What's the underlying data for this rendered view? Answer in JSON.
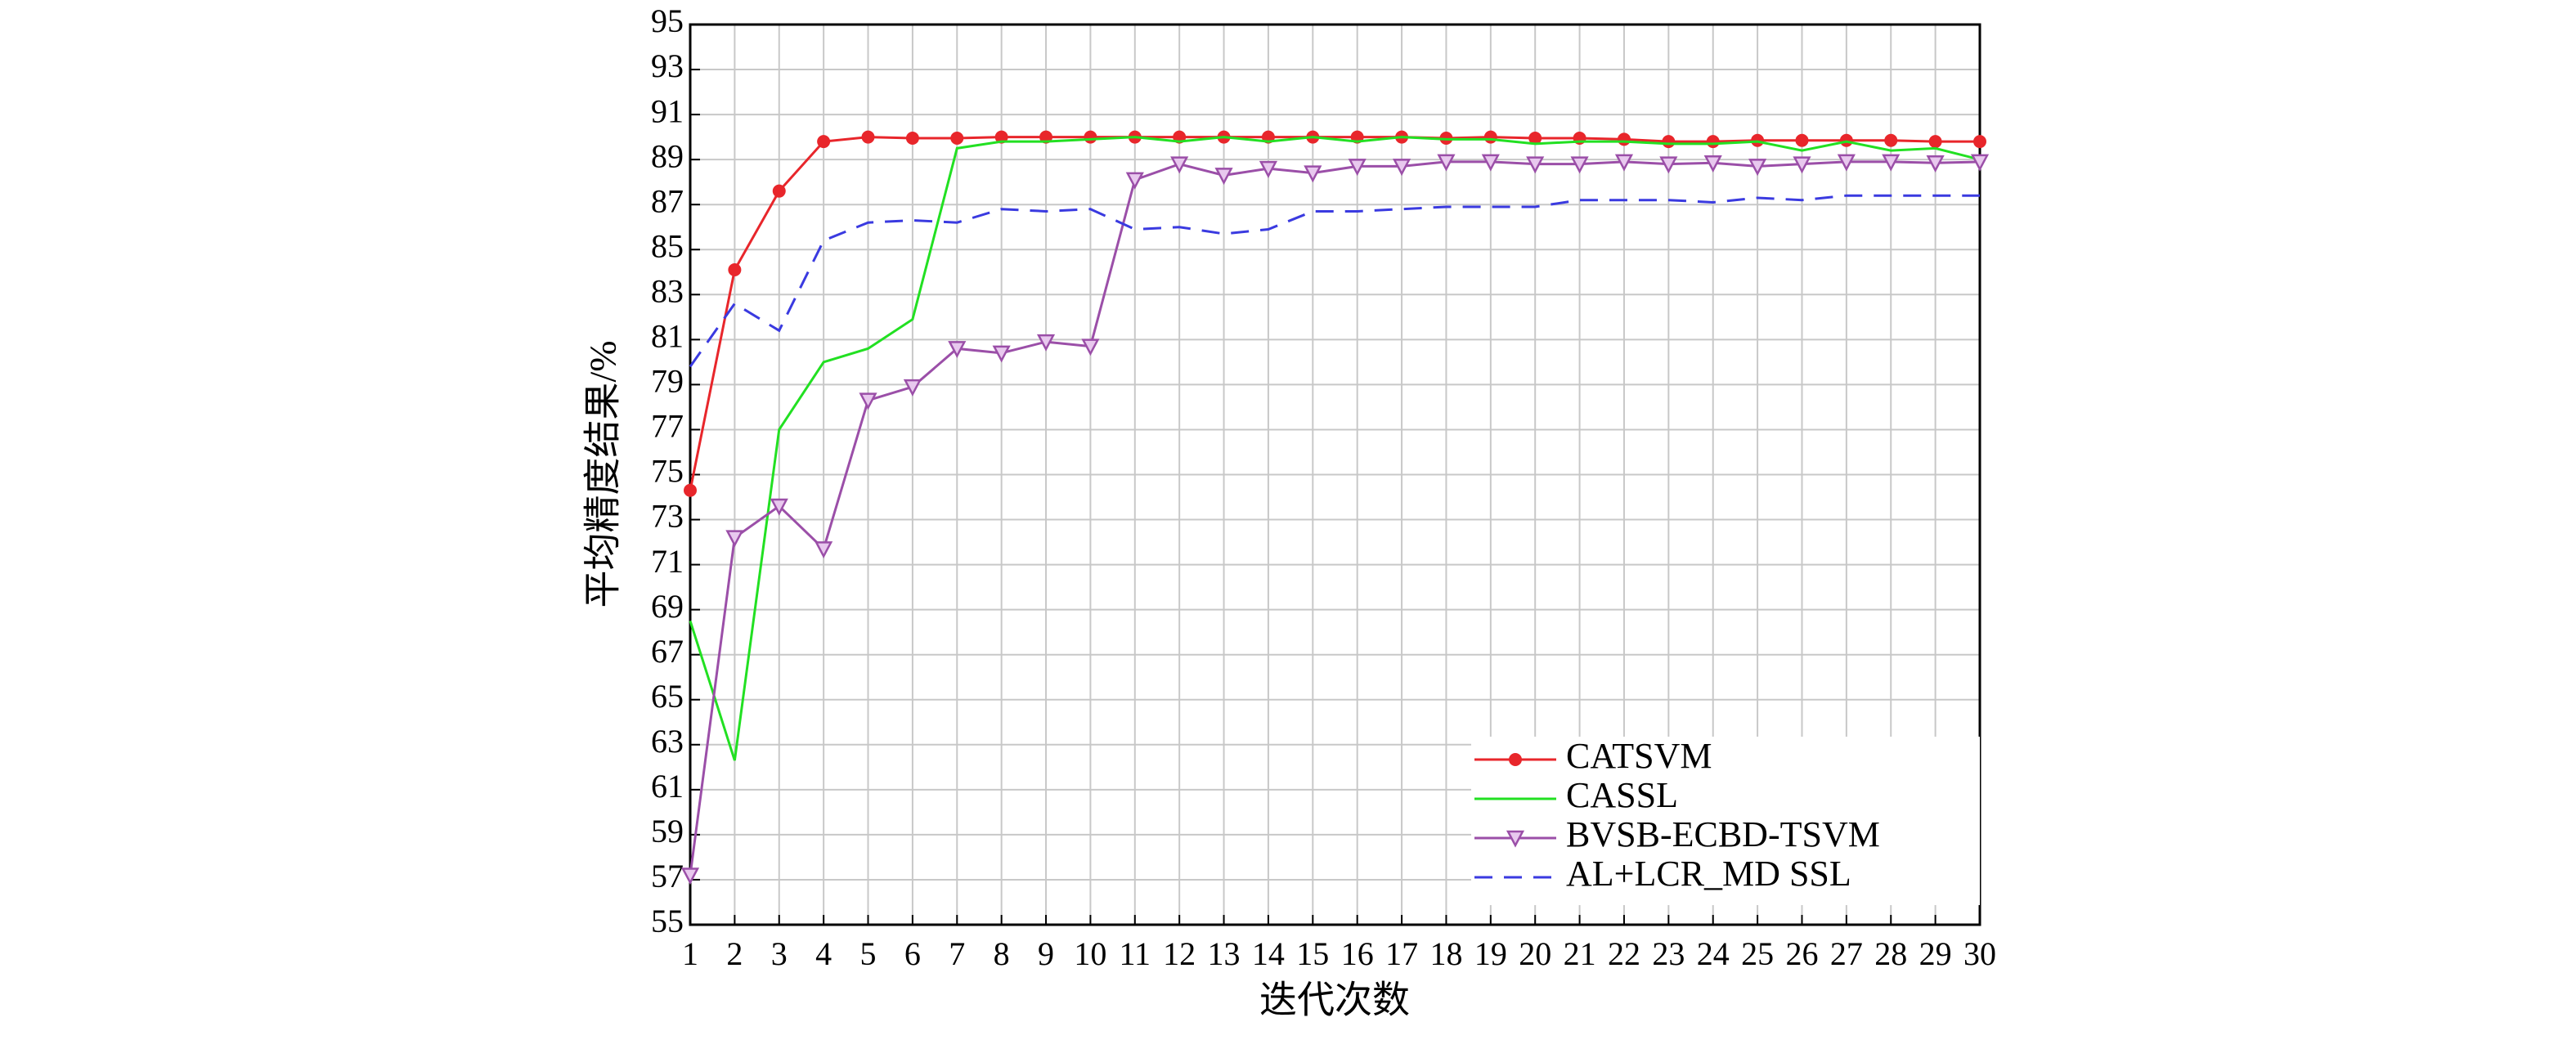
{
  "chart_data": {
    "type": "line",
    "x_label": "迭代次数",
    "y_label": "平均精度结果/%",
    "x": [
      1,
      2,
      3,
      4,
      5,
      6,
      7,
      8,
      9,
      10,
      11,
      12,
      13,
      14,
      15,
      16,
      17,
      18,
      19,
      20,
      21,
      22,
      23,
      24,
      25,
      26,
      27,
      28,
      29,
      30
    ],
    "xlim": [
      1,
      30
    ],
    "xticks": [
      1,
      2,
      3,
      4,
      5,
      6,
      7,
      8,
      9,
      10,
      11,
      12,
      13,
      14,
      15,
      16,
      17,
      18,
      19,
      20,
      21,
      22,
      23,
      24,
      25,
      26,
      27,
      28,
      29,
      30
    ],
    "ylim": [
      55,
      95
    ],
    "yticks": [
      55,
      57,
      59,
      61,
      63,
      65,
      67,
      69,
      71,
      73,
      75,
      77,
      79,
      81,
      83,
      85,
      87,
      89,
      91,
      93,
      95
    ],
    "grid": true,
    "legend": "lower right",
    "series": [
      {
        "name": "CATSVM",
        "color": "#e8262b",
        "marker": "circle",
        "dash": false,
        "values": [
          74.3,
          84.1,
          87.6,
          89.8,
          90.0,
          89.95,
          89.95,
          90.0,
          90.0,
          90.0,
          90.0,
          90.0,
          90.0,
          90.0,
          90.0,
          90.0,
          90.0,
          89.95,
          90.0,
          89.95,
          89.95,
          89.9,
          89.8,
          89.8,
          89.85,
          89.85,
          89.85,
          89.85,
          89.8,
          89.8
        ]
      },
      {
        "name": "CASSL",
        "color": "#22e022",
        "marker": null,
        "dash": false,
        "values": [
          68.5,
          62.3,
          77.0,
          80.0,
          80.6,
          81.9,
          89.5,
          89.8,
          89.8,
          89.9,
          90.0,
          89.8,
          90.0,
          89.8,
          90.0,
          89.8,
          90.0,
          89.9,
          89.9,
          89.7,
          89.8,
          89.8,
          89.7,
          89.7,
          89.8,
          89.4,
          89.8,
          89.4,
          89.5,
          89.0
        ]
      },
      {
        "name": "BVSB-ECBD-TSVM",
        "color": "#9b4fa8",
        "marker": "triangle-down",
        "dash": false,
        "values": [
          57.2,
          72.2,
          73.6,
          71.7,
          78.3,
          78.9,
          80.6,
          80.4,
          80.9,
          80.7,
          88.1,
          88.8,
          88.3,
          88.6,
          88.4,
          88.7,
          88.7,
          88.9,
          88.9,
          88.8,
          88.8,
          88.9,
          88.8,
          88.85,
          88.7,
          88.8,
          88.9,
          88.9,
          88.85,
          88.9
        ]
      },
      {
        "name": "AL+LCR_MD SSL",
        "color": "#3a3ae0",
        "marker": null,
        "dash": true,
        "values": [
          79.8,
          82.6,
          81.4,
          85.4,
          86.2,
          86.3,
          86.2,
          86.8,
          86.7,
          86.8,
          85.9,
          86.0,
          85.7,
          85.9,
          86.7,
          86.7,
          86.8,
          86.9,
          86.9,
          86.9,
          87.2,
          87.2,
          87.2,
          87.1,
          87.3,
          87.2,
          87.4,
          87.4,
          87.4,
          87.4
        ]
      }
    ]
  }
}
